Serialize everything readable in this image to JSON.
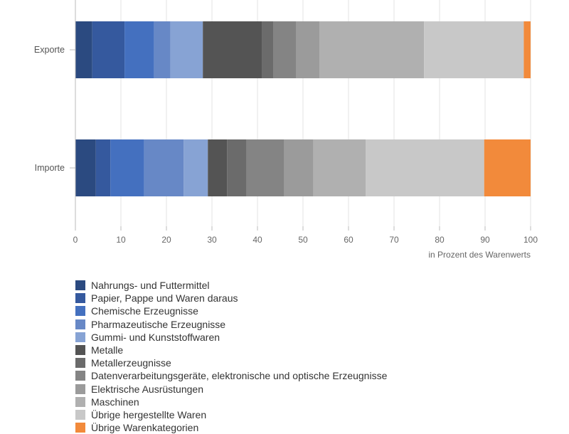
{
  "chart_data": {
    "type": "bar",
    "orientation": "horizontal",
    "stacked": true,
    "categories": [
      "Exporte",
      "Importe"
    ],
    "xlabel": "in Prozent des Warenwerts",
    "xlim": [
      0,
      100
    ],
    "xticks": [
      "0",
      "10",
      "20",
      "30",
      "40",
      "50",
      "60",
      "70",
      "80",
      "90",
      "100"
    ],
    "grid": true,
    "legend_position": "bottom-left",
    "series": [
      {
        "name": "Nahrungs- und Futtermittel",
        "color": "#2b4a80",
        "values": [
          3.7,
          4.5
        ]
      },
      {
        "name": "Papier, Pappe und Waren daraus",
        "color": "#35599e",
        "values": [
          7.1,
          3.2
        ]
      },
      {
        "name": "Chemische Erzeugnisse",
        "color": "#4470bf",
        "values": [
          6.5,
          7.4
        ]
      },
      {
        "name": "Pharmazeutische Erzeugnisse",
        "color": "#6788c6",
        "values": [
          3.6,
          8.7
        ]
      },
      {
        "name": "Gummi- und Kunststoffwaren",
        "color": "#87a3d4",
        "values": [
          7.1,
          5.3
        ]
      },
      {
        "name": "Metalle",
        "color": "#545454",
        "values": [
          13.0,
          4.2
        ]
      },
      {
        "name": "Metallerzeugnisse",
        "color": "#6b6b6b",
        "values": [
          2.5,
          4.3
        ]
      },
      {
        "name": "Datenverarbeitungsgeräte, elektronische und optische Erzeugnisse",
        "color": "#848484",
        "values": [
          5.0,
          8.3
        ]
      },
      {
        "name": "Elektrische Ausrüstungen",
        "color": "#9b9b9b",
        "values": [
          5.1,
          6.4
        ]
      },
      {
        "name": "Maschinen",
        "color": "#b0b0b0",
        "values": [
          23.0,
          11.5
        ]
      },
      {
        "name": "Übrige hergestellte Waren",
        "color": "#c8c8c8",
        "values": [
          21.9,
          26.0
        ]
      },
      {
        "name": "Übrige Warenkategorien",
        "color": "#f28a3b",
        "values": [
          1.5,
          10.2
        ]
      }
    ]
  }
}
